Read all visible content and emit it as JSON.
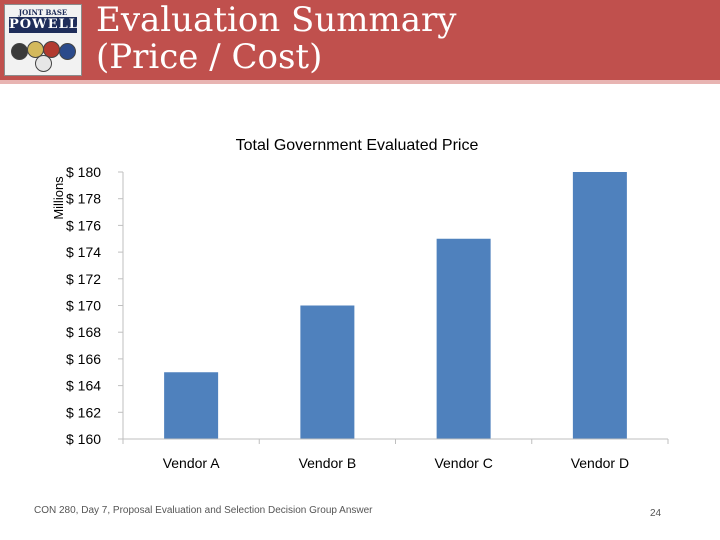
{
  "slide": {
    "title_line1": "Evaluation Summary",
    "title_line2": "(Price / Cost)",
    "logo": {
      "top_text": "JOINT BASE",
      "word": "POWELL",
      "seal_icons": [
        "army-seal-icon",
        "navy-seal-icon",
        "marine-seal-icon",
        "air-force-seal-icon",
        "coast-guard-seal-icon"
      ]
    },
    "footer": "CON 280, Day 7, Proposal Evaluation and Selection Decision Group Answer",
    "page_number": "24"
  },
  "colors": {
    "header_bg": "#c0504d",
    "bar_fill": "#4f81bd",
    "axis": "#bfbfbf"
  },
  "chart_data": {
    "type": "bar",
    "title": "Total Government Evaluated Price",
    "ylabel": "Millions",
    "xlabel": "",
    "categories": [
      "Vendor A",
      "Vendor B",
      "Vendor C",
      "Vendor D"
    ],
    "values": [
      165,
      170,
      175,
      180
    ],
    "ylim": [
      160,
      180
    ],
    "yticks": [
      160,
      162,
      164,
      166,
      168,
      170,
      172,
      174,
      176,
      178,
      180
    ],
    "ytick_labels": [
      "$ 160",
      "$ 162",
      "$ 164",
      "$ 166",
      "$ 168",
      "$ 170",
      "$ 172",
      "$ 174",
      "$ 176",
      "$ 178",
      "$ 180"
    ],
    "grid": false,
    "legend": "none"
  }
}
